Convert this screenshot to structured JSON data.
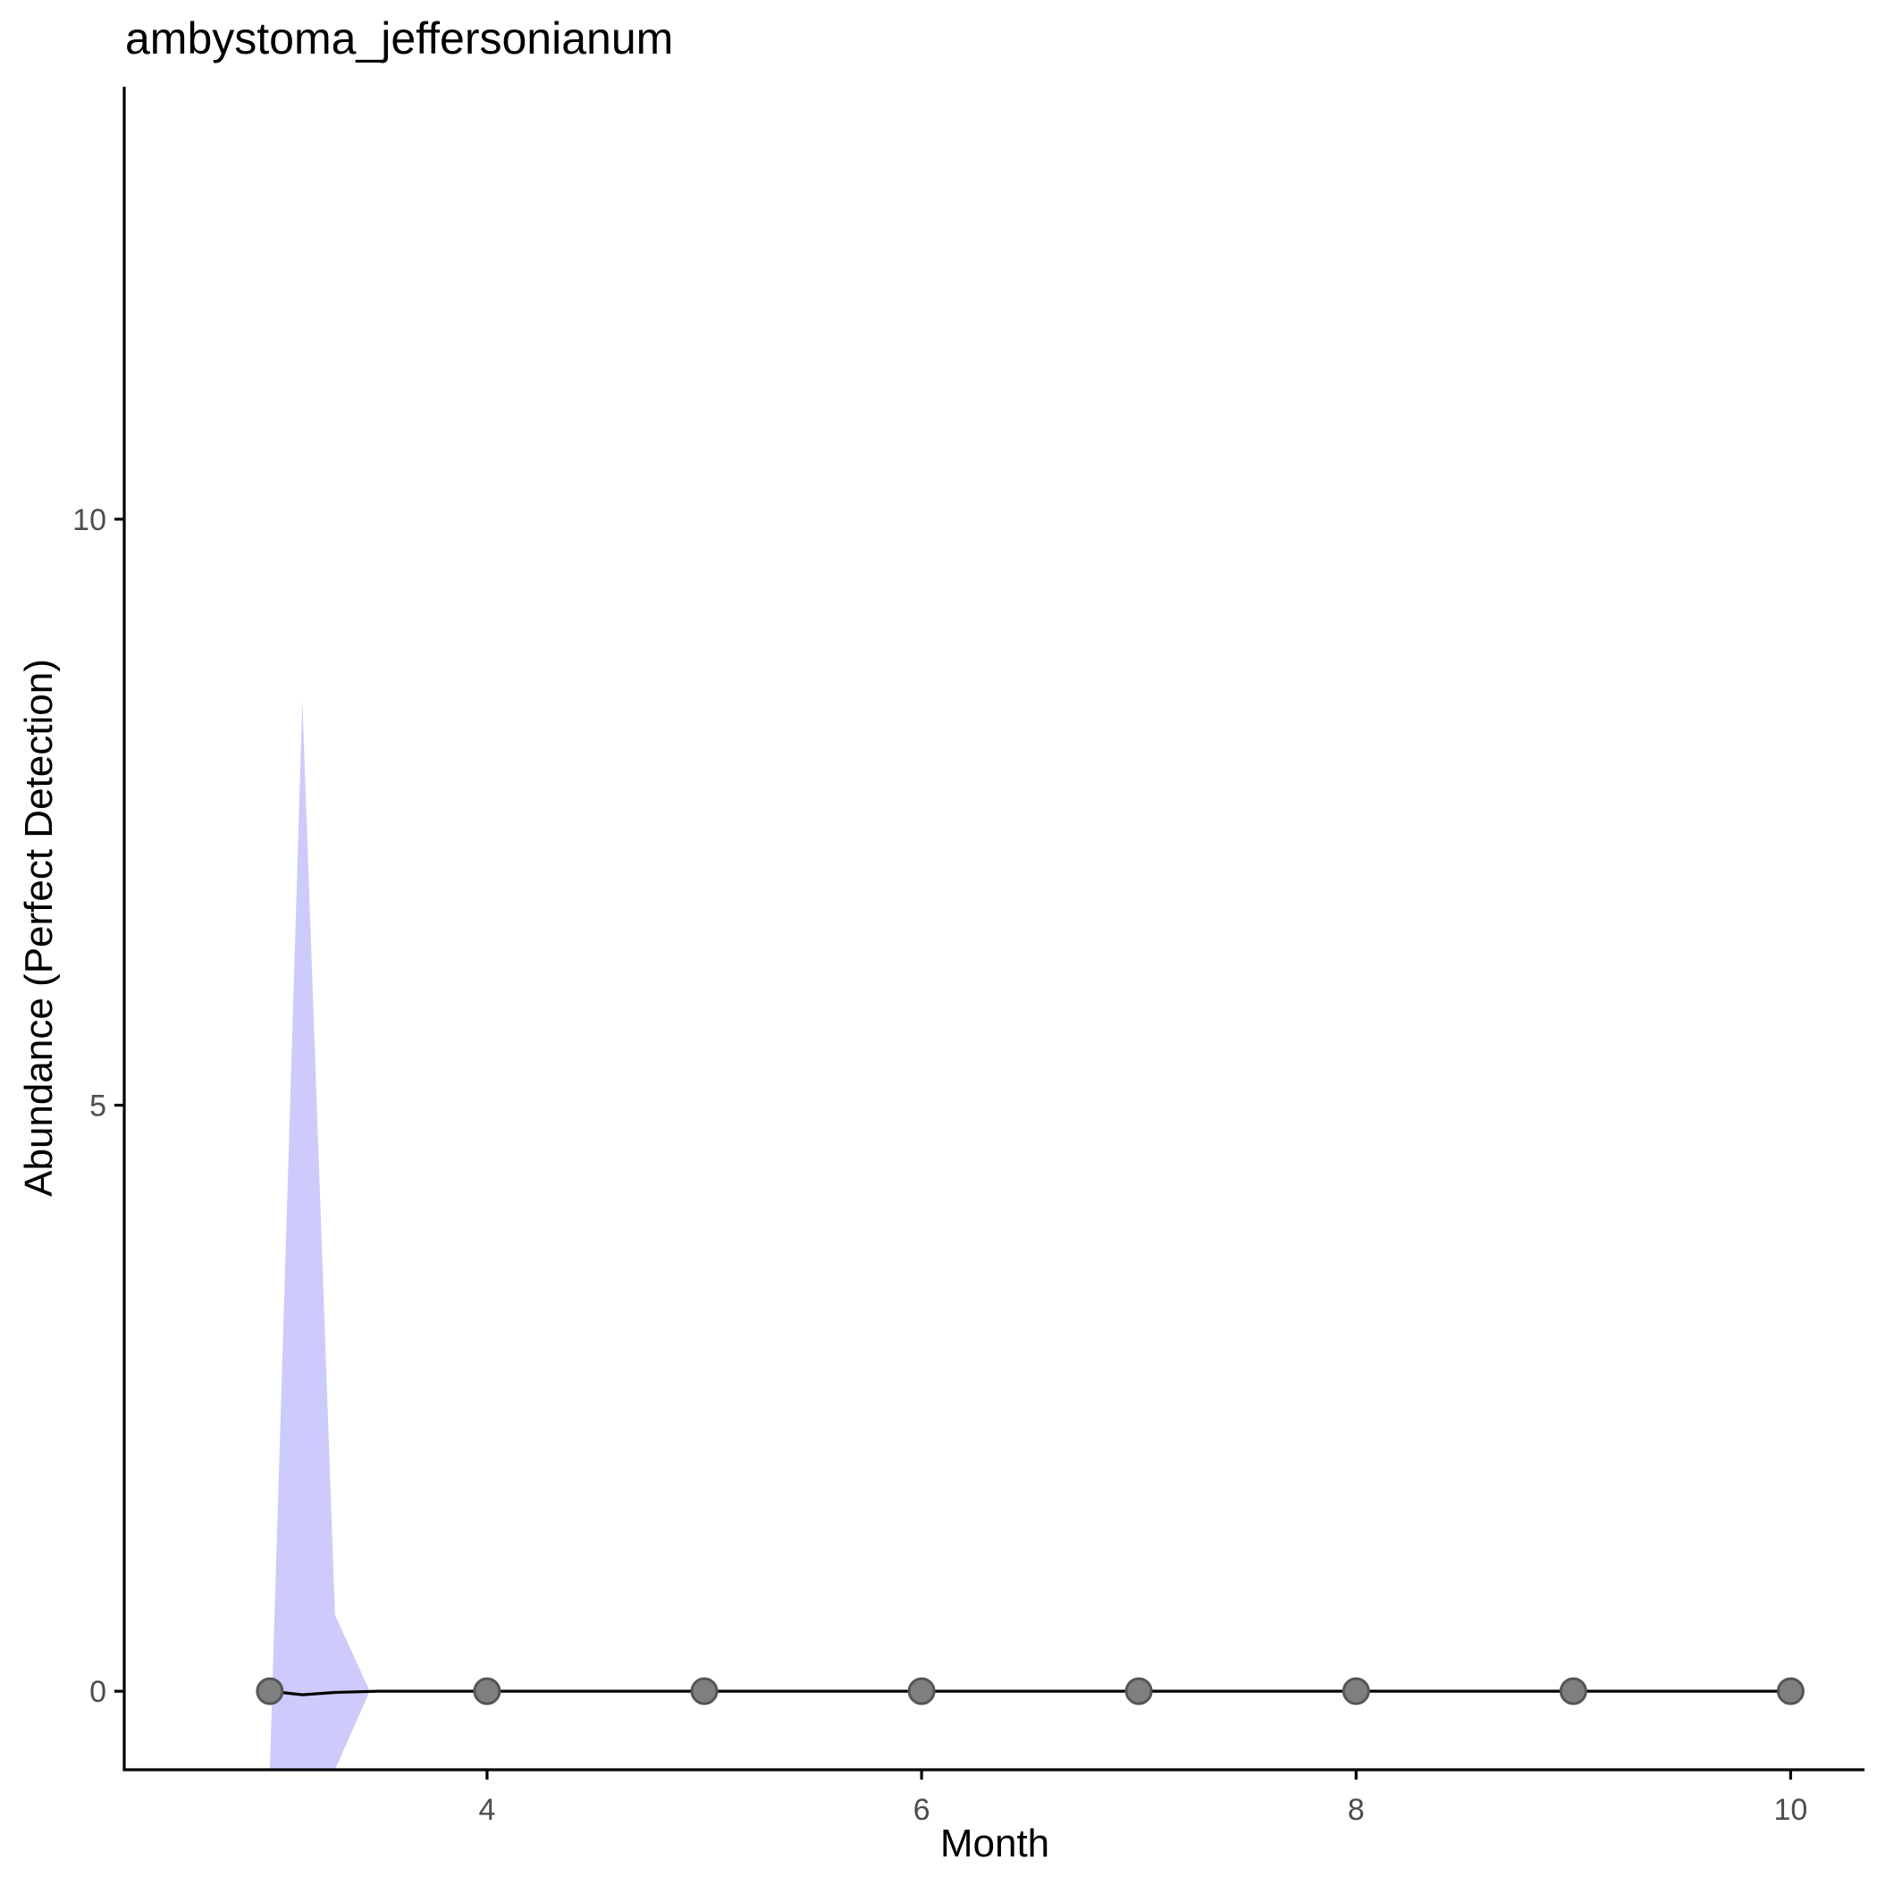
{
  "chart_data": {
    "type": "line",
    "title": "ambystoma_jeffersonianum",
    "xlabel": "Month",
    "ylabel": "Abundance (Perfect Detection)",
    "xlim": [
      2.33,
      10.34
    ],
    "ylim": [
      -0.67,
      13.69
    ],
    "x_ticks": [
      4,
      6,
      8,
      10
    ],
    "x_tick_labels": [
      "4",
      "6",
      "8",
      "10"
    ],
    "y_ticks": [
      0,
      5,
      10
    ],
    "y_tick_labels": [
      "0",
      "5",
      "10"
    ],
    "points": [
      {
        "x": 3,
        "y": 0
      },
      {
        "x": 4,
        "y": 0
      },
      {
        "x": 5,
        "y": 0
      },
      {
        "x": 6,
        "y": 0
      },
      {
        "x": 7,
        "y": 0
      },
      {
        "x": 8,
        "y": 0
      },
      {
        "x": 9,
        "y": 0
      },
      {
        "x": 10,
        "y": 0
      }
    ],
    "fit_line": [
      {
        "x": 3.0,
        "y": 0.0
      },
      {
        "x": 3.15,
        "y": -0.03
      },
      {
        "x": 3.3,
        "y": -0.01
      },
      {
        "x": 3.5,
        "y": 0.0
      },
      {
        "x": 10.0,
        "y": 0.0
      }
    ],
    "ribbon": [
      {
        "x": 3.0,
        "lower": -0.67,
        "upper": -0.67
      },
      {
        "x": 3.15,
        "lower": -0.67,
        "upper": 8.45
      },
      {
        "x": 3.3,
        "lower": -0.67,
        "upper": 0.65
      },
      {
        "x": 3.46,
        "lower": 0.0,
        "upper": 0.0
      },
      {
        "x": 3.6,
        "lower": 0.0,
        "upper": 0.0
      }
    ],
    "colors": {
      "ribbon": "#cccbfb",
      "line": "#000000",
      "point_fill": "#7f7f7f",
      "point_stroke": "#555555"
    },
    "grid": false,
    "legend": "none"
  }
}
